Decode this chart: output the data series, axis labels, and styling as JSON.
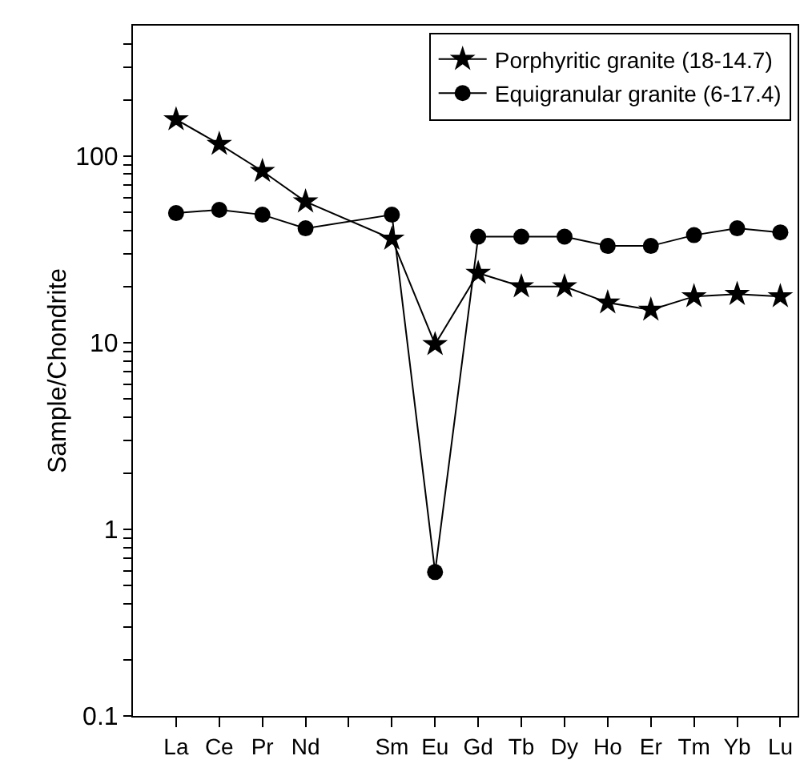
{
  "chart_data": {
    "type": "line",
    "ylabel": "Sample/Chondrite",
    "categories": [
      "La",
      "Ce",
      "Pr",
      "Nd",
      null,
      "Sm",
      "Eu",
      "Gd",
      "Tb",
      "Dy",
      "Ho",
      "Er",
      "Tm",
      "Yb",
      "Lu"
    ],
    "series": [
      {
        "name": "Porphyritic granite (18-14.7)",
        "color": "#000000",
        "marker": "star",
        "values": [
          157,
          116,
          83,
          57,
          null,
          36,
          9.8,
          23.6,
          20,
          20,
          16.4,
          15,
          17.7,
          18.2,
          17.7
        ]
      },
      {
        "name": "Equigranular granite (6-17.4)",
        "color": "#000000",
        "marker": "circle",
        "values": [
          49.5,
          51.5,
          48.5,
          41,
          null,
          48.5,
          0.59,
          37,
          37,
          37,
          33,
          33,
          37.7,
          41,
          39
        ]
      }
    ],
    "log": "y",
    "ylim": [
      0.1,
      500
    ],
    "yticks": [
      0.1,
      {
        "value": 0.2,
        "label": null
      },
      {
        "value": 0.3,
        "label": null
      },
      {
        "value": 0.4,
        "label": null
      },
      {
        "value": 0.5,
        "label": null
      },
      {
        "value": 0.6,
        "label": null
      },
      {
        "value": 0.7,
        "label": null
      },
      {
        "value": 0.8,
        "label": null
      },
      {
        "value": 0.9,
        "label": null
      },
      1,
      {
        "value": 2,
        "label": null
      },
      {
        "value": 3,
        "label": null
      },
      {
        "value": 4,
        "label": null
      },
      {
        "value": 5,
        "label": null
      },
      {
        "value": 6,
        "label": null
      },
      {
        "value": 7,
        "label": null
      },
      {
        "value": 8,
        "label": null
      },
      {
        "value": 9,
        "label": null
      },
      10,
      {
        "value": 20,
        "label": null
      },
      {
        "value": 30,
        "label": null
      },
      {
        "value": 40,
        "label": null
      },
      {
        "value": 50,
        "label": null
      },
      {
        "value": 60,
        "label": null
      },
      {
        "value": 70,
        "label": null
      },
      {
        "value": 80,
        "label": null
      },
      {
        "value": 90,
        "label": null
      },
      100,
      {
        "value": 200,
        "label": null
      },
      {
        "value": 300,
        "label": null
      },
      {
        "value": 400,
        "label": null
      }
    ],
    "grid": false,
    "legend": "top right",
    "line_style": "solid"
  }
}
